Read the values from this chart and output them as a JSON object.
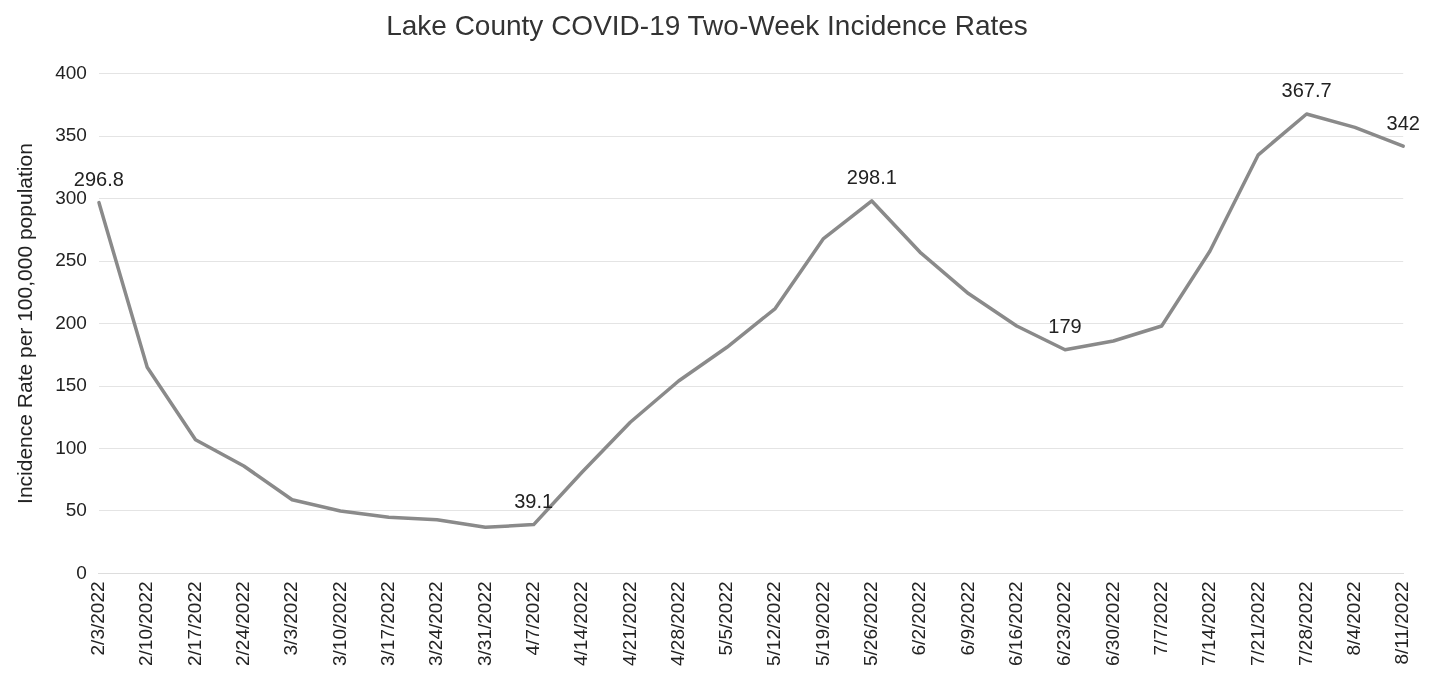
{
  "chart_data": {
    "type": "line",
    "title": "Lake County COVID-19 Two-Week Incidence Rates",
    "ylabel": "Incidence Rate per 100,000 population",
    "categories": [
      "2/3/2022",
      "2/10/2022",
      "2/17/2022",
      "2/24/2022",
      "3/3/2022",
      "3/10/2022",
      "3/17/2022",
      "3/24/2022",
      "3/31/2022",
      "4/7/2022",
      "4/14/2022",
      "4/21/2022",
      "4/28/2022",
      "5/5/2022",
      "5/12/2022",
      "5/19/2022",
      "5/26/2022",
      "6/2/2022",
      "6/9/2022",
      "6/16/2022",
      "6/23/2022",
      "6/30/2022",
      "7/7/2022",
      "7/14/2022",
      "7/21/2022",
      "7/28/2022",
      "8/4/2022",
      "8/11/2022"
    ],
    "series": [
      {
        "color": "#8a8a8a",
        "values": [
          296.8,
          165,
          107,
          86,
          59,
          50,
          45,
          43,
          37,
          39.1,
          81,
          121,
          154,
          181,
          212,
          268,
          298.1,
          257,
          224,
          198,
          179,
          186,
          198,
          258,
          335,
          367.7,
          357,
          342
        ],
        "value_labels": [
          "296.8",
          null,
          null,
          null,
          null,
          null,
          null,
          null,
          null,
          "39.1",
          null,
          null,
          null,
          null,
          null,
          null,
          "298.1",
          null,
          null,
          null,
          "179",
          null,
          null,
          null,
          null,
          "367.7",
          null,
          "342"
        ]
      }
    ],
    "ylim": [
      0,
      400
    ],
    "yticks": [
      0,
      50,
      100,
      150,
      200,
      250,
      300,
      350,
      400
    ],
    "grid": "y",
    "legend": false,
    "marker": "none",
    "line_style": "solid"
  }
}
